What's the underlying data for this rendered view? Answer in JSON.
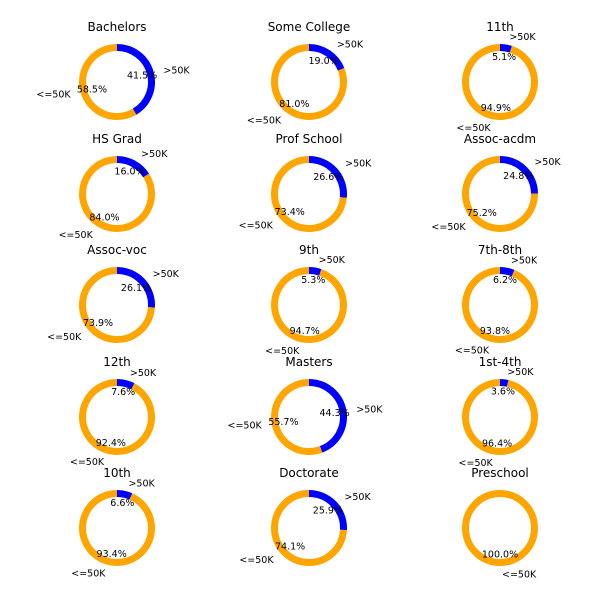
{
  "colors": {
    "over_50k": "#0000ff",
    "under_50k": "#ffa500"
  },
  "chart_data": [
    {
      "type": "pie",
      "title": "Bachelors",
      "labels": [
        ">50K",
        "<=50K"
      ],
      "values": [
        41.5,
        58.5
      ],
      "value_labels": [
        "41.5%",
        "58.5%"
      ]
    },
    {
      "type": "pie",
      "title": "Some College",
      "labels": [
        ">50K",
        "<=50K"
      ],
      "values": [
        19.0,
        81.0
      ],
      "value_labels": [
        "19.0%",
        "81.0%"
      ]
    },
    {
      "type": "pie",
      "title": "11th",
      "labels": [
        ">50K",
        "<=50K"
      ],
      "values": [
        5.1,
        94.9
      ],
      "value_labels": [
        "5.1%",
        "94.9%"
      ]
    },
    {
      "type": "pie",
      "title": "HS Grad",
      "labels": [
        ">50K",
        "<=50K"
      ],
      "values": [
        16.0,
        84.0
      ],
      "value_labels": [
        "16.0%",
        "84.0%"
      ]
    },
    {
      "type": "pie",
      "title": "Prof School",
      "labels": [
        ">50K",
        "<=50K"
      ],
      "values": [
        26.6,
        73.4
      ],
      "value_labels": [
        "26.6%",
        "73.4%"
      ]
    },
    {
      "type": "pie",
      "title": "Assoc-acdm",
      "labels": [
        ">50K",
        "<=50K"
      ],
      "values": [
        24.8,
        75.2
      ],
      "value_labels": [
        "24.8%",
        "75.2%"
      ]
    },
    {
      "type": "pie",
      "title": "Assoc-voc",
      "labels": [
        ">50K",
        "<=50K"
      ],
      "values": [
        26.1,
        73.9
      ],
      "value_labels": [
        "26.1%",
        "73.9%"
      ]
    },
    {
      "type": "pie",
      "title": "9th",
      "labels": [
        ">50K",
        "<=50K"
      ],
      "values": [
        5.3,
        94.7
      ],
      "value_labels": [
        "5.3%",
        "94.7%"
      ]
    },
    {
      "type": "pie",
      "title": "7th-8th",
      "labels": [
        ">50K",
        "<=50K"
      ],
      "values": [
        6.2,
        93.8
      ],
      "value_labels": [
        "6.2%",
        "93.8%"
      ]
    },
    {
      "type": "pie",
      "title": "12th",
      "labels": [
        ">50K",
        "<=50K"
      ],
      "values": [
        7.6,
        92.4
      ],
      "value_labels": [
        "7.6%",
        "92.4%"
      ]
    },
    {
      "type": "pie",
      "title": "Masters",
      "labels": [
        ">50K",
        "<=50K"
      ],
      "values": [
        44.3,
        55.7
      ],
      "value_labels": [
        "44.3%",
        "55.7%"
      ]
    },
    {
      "type": "pie",
      "title": "1st-4th",
      "labels": [
        ">50K",
        "<=50K"
      ],
      "values": [
        3.6,
        96.4
      ],
      "value_labels": [
        "3.6%",
        "96.4%"
      ]
    },
    {
      "type": "pie",
      "title": "10th",
      "labels": [
        ">50K",
        "<=50K"
      ],
      "values": [
        6.6,
        93.4
      ],
      "value_labels": [
        "6.6%",
        "93.4%"
      ]
    },
    {
      "type": "pie",
      "title": "Doctorate",
      "labels": [
        ">50K",
        "<=50K"
      ],
      "values": [
        25.9,
        74.1
      ],
      "value_labels": [
        "25.9%",
        "74.1%"
      ]
    },
    {
      "type": "pie",
      "title": "Preschool",
      "labels": [
        "<=50K"
      ],
      "values": [
        100.0
      ],
      "value_labels": [
        "100.0%"
      ]
    }
  ]
}
